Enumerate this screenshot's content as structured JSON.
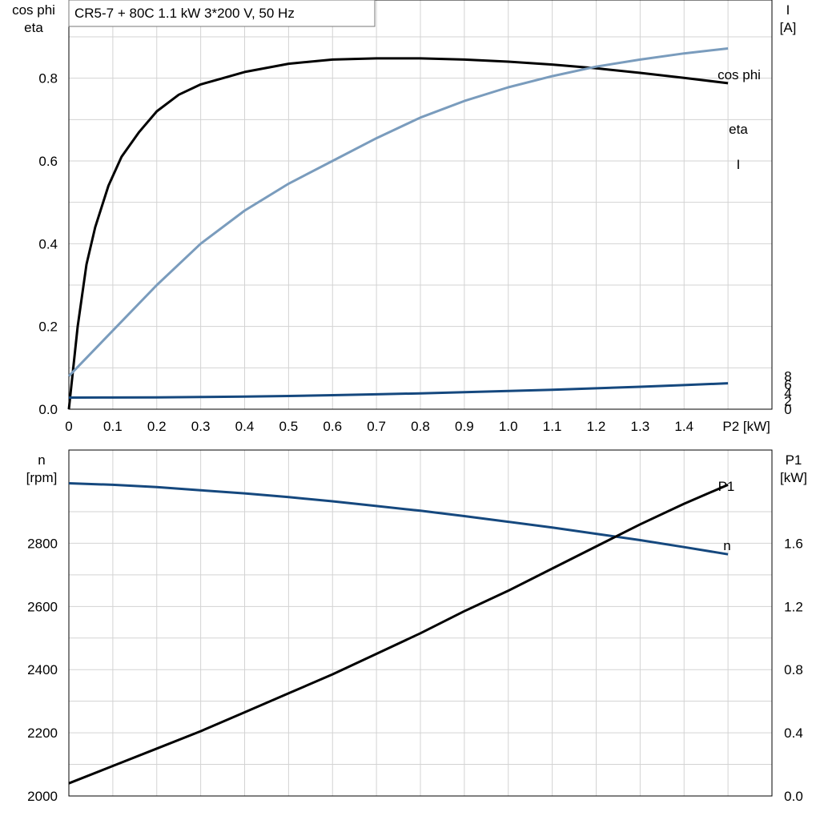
{
  "header": {
    "title": "CR5-7 + 80C   1.1 kW   3*200 V, 50 Hz"
  },
  "colors": {
    "eta": "#000000",
    "cos_phi": "#7a9cbd",
    "I": "#15487e",
    "n": "#15487e",
    "P1": "#000000",
    "grid": "#d3d3d3"
  },
  "chart_data": [
    {
      "type": "line",
      "title": "CR5-7 + 80C   1.1 kW   3*200 V, 50 Hz",
      "xlabel": "P2 [kW]",
      "ylabel_left": [
        "cos phi",
        "eta"
      ],
      "ylabel_right": [
        "I",
        "[A]"
      ],
      "xlim": [
        0,
        1.6
      ],
      "ylim_left": [
        0,
        1.0
      ],
      "ylim_right": [
        0,
        10
      ],
      "x_ticks": [
        "0",
        "0.1",
        "0.2",
        "0.3",
        "0.4",
        "0.5",
        "0.6",
        "0.7",
        "0.8",
        "0.9",
        "1.0",
        "1.1",
        "1.2",
        "1.3",
        "1.4",
        "P2 [kW]"
      ],
      "y_ticks_left": [
        "0.0",
        "0.2",
        "0.4",
        "0.6",
        "0.8"
      ],
      "y_ticks_right": [
        "0",
        "2",
        "4",
        "6",
        "8"
      ],
      "grid": true,
      "series": [
        {
          "name": "eta",
          "axis": "left",
          "x": [
            0,
            0.02,
            0.04,
            0.06,
            0.09,
            0.12,
            0.16,
            0.2,
            0.25,
            0.3,
            0.35,
            0.4,
            0.5,
            0.6,
            0.7,
            0.8,
            0.9,
            1.0,
            1.1,
            1.2,
            1.3,
            1.4,
            1.5
          ],
          "y": [
            0,
            0.2,
            0.35,
            0.44,
            0.54,
            0.61,
            0.67,
            0.72,
            0.76,
            0.785,
            0.8,
            0.815,
            0.835,
            0.845,
            0.848,
            0.848,
            0.845,
            0.84,
            0.833,
            0.824,
            0.813,
            0.801,
            0.788
          ]
        },
        {
          "name": "cos phi",
          "axis": "left",
          "x": [
            0,
            0.1,
            0.2,
            0.3,
            0.4,
            0.5,
            0.6,
            0.7,
            0.8,
            0.9,
            1.0,
            1.1,
            1.2,
            1.3,
            1.4,
            1.5
          ],
          "y": [
            0.08,
            0.19,
            0.3,
            0.4,
            0.48,
            0.545,
            0.6,
            0.655,
            0.705,
            0.745,
            0.778,
            0.805,
            0.828,
            0.845,
            0.86,
            0.872
          ]
        },
        {
          "name": "I",
          "axis": "right",
          "x": [
            0,
            0.1,
            0.2,
            0.3,
            0.4,
            0.5,
            0.6,
            0.7,
            0.8,
            0.9,
            1.0,
            1.1,
            1.2,
            1.3,
            1.4,
            1.5
          ],
          "y": [
            2.8,
            2.82,
            2.87,
            2.95,
            3.06,
            3.2,
            3.38,
            3.6,
            3.84,
            4.11,
            4.4,
            4.71,
            5.05,
            5.42,
            5.82,
            6.27
          ]
        }
      ]
    },
    {
      "type": "line",
      "xlim": [
        0,
        1.6
      ],
      "ylabel_left": [
        "n",
        "[rpm]"
      ],
      "ylabel_right": [
        "P1",
        "[kW]"
      ],
      "ylim_left": [
        2000,
        3000
      ],
      "ylim_right": [
        0,
        2.0
      ],
      "y_ticks_left": [
        "2000",
        "2200",
        "2400",
        "2600",
        "2800"
      ],
      "y_ticks_right": [
        "0.0",
        "0.4",
        "0.8",
        "1.2",
        "1.6"
      ],
      "grid": true,
      "series": [
        {
          "name": "n",
          "axis": "left",
          "x": [
            0,
            0.1,
            0.2,
            0.3,
            0.4,
            0.5,
            0.6,
            0.7,
            0.8,
            0.9,
            1.0,
            1.1,
            1.2,
            1.3,
            1.4,
            1.5
          ],
          "y": [
            2990,
            2985,
            2978,
            2968,
            2958,
            2946,
            2933,
            2918,
            2903,
            2886,
            2868,
            2850,
            2830,
            2810,
            2788,
            2765
          ]
        },
        {
          "name": "P1",
          "axis": "right",
          "x": [
            0,
            0.1,
            0.2,
            0.3,
            0.4,
            0.5,
            0.6,
            0.7,
            0.8,
            0.9,
            1.0,
            1.1,
            1.2,
            1.3,
            1.4,
            1.5
          ],
          "y": [
            0.08,
            0.19,
            0.3,
            0.41,
            0.53,
            0.65,
            0.77,
            0.9,
            1.03,
            1.17,
            1.3,
            1.44,
            1.58,
            1.72,
            1.85,
            1.97
          ]
        }
      ]
    }
  ]
}
